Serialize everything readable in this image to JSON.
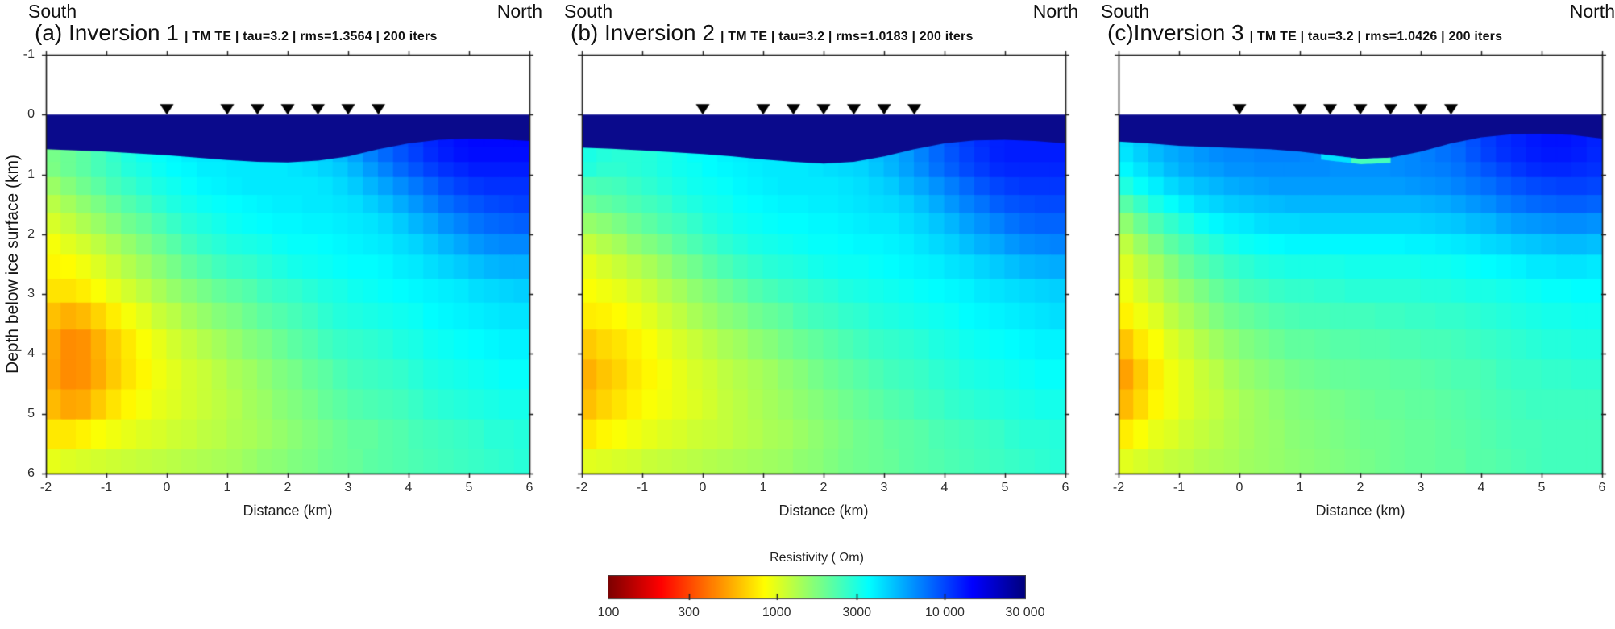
{
  "figure": {
    "background": "#ffffff"
  },
  "chart_data": {
    "type": "heatmap",
    "description": "Three 2-D magnetotelluric resistivity inversion cross-sections (blocky model cells) with an ice layer at top, seven station markers on the surface, and a shared logarithmic jet-reversed colorbar.",
    "x_axis": {
      "label": "Distance (km)",
      "range": [
        -2,
        6
      ],
      "ticks": [
        "-2",
        "-1",
        "0",
        "1",
        "2",
        "3",
        "4",
        "5",
        "6"
      ],
      "tick_values": [
        -2,
        -1,
        0,
        1,
        2,
        3,
        4,
        5,
        6
      ]
    },
    "y_axis": {
      "label": "Depth below ice surface (km)",
      "range": [
        -1,
        6
      ],
      "ticks": [
        "-1",
        "0",
        "1",
        "2",
        "3",
        "4",
        "5",
        "6"
      ],
      "tick_values": [
        -1,
        0,
        1,
        2,
        3,
        4,
        5,
        6
      ]
    },
    "stations_x_km": [
      0,
      1,
      1.5,
      2,
      2.5,
      3,
      3.5
    ],
    "ice_color": "#0a0a8c",
    "frame_color": "#1a1a1a",
    "colorbar": {
      "title": "Resistivity ( Ωm)",
      "scale": "log",
      "range": [
        100,
        30000
      ],
      "tick_values": [
        100,
        300,
        1000,
        3000,
        10000,
        30000
      ],
      "tick_labels": [
        "100",
        "300",
        "1000",
        "3000",
        "10 000",
        "30 000"
      ],
      "colormap": "jet-reversed"
    },
    "grid_x_km": [
      -2,
      -1.5,
      -1,
      -0.5,
      0,
      0.5,
      1,
      1.5,
      2,
      2.5,
      3,
      3.5,
      4,
      4.5,
      5,
      5.5,
      6
    ],
    "grid_z_km": [
      0.6,
      0.9,
      1.2,
      1.6,
      2.0,
      2.5,
      3.0,
      3.6,
      4.2,
      4.9,
      5.5,
      5.85
    ],
    "panels": [
      {
        "id": "a",
        "south": "South",
        "north": "North",
        "title_main": "(a) Inversion 1",
        "title_info": "| TM TE | tau=3.2 | rms=1.3564 | 200 iters",
        "rms": 1.3564,
        "tau": 3.2,
        "modes": "TM TE",
        "iterations": 200,
        "ice_bottom_km": [
          0.58,
          0.6,
          0.62,
          0.65,
          0.68,
          0.72,
          0.76,
          0.79,
          0.8,
          0.77,
          0.7,
          0.58,
          0.48,
          0.42,
          0.4,
          0.41,
          0.44
        ],
        "basal_streak": null,
        "log10_resistivity": [
          [
            3.25,
            3.3,
            3.4,
            3.5,
            3.55,
            3.6,
            3.6,
            3.6,
            3.6,
            3.65,
            3.75,
            3.9,
            4.0,
            4.1,
            4.15,
            4.15,
            4.15
          ],
          [
            3.25,
            3.3,
            3.4,
            3.48,
            3.54,
            3.58,
            3.6,
            3.6,
            3.6,
            3.63,
            3.7,
            3.83,
            3.95,
            4.05,
            4.1,
            4.1,
            4.1
          ],
          [
            3.15,
            3.25,
            3.35,
            3.44,
            3.5,
            3.55,
            3.58,
            3.6,
            3.6,
            3.6,
            3.65,
            3.75,
            3.85,
            3.95,
            4.03,
            4.05,
            4.05
          ],
          [
            3.05,
            3.15,
            3.25,
            3.35,
            3.44,
            3.5,
            3.54,
            3.56,
            3.58,
            3.6,
            3.6,
            3.65,
            3.75,
            3.85,
            3.93,
            3.98,
            4.0
          ],
          [
            2.95,
            3.05,
            3.15,
            3.25,
            3.35,
            3.44,
            3.5,
            3.52,
            3.55,
            3.56,
            3.58,
            3.6,
            3.66,
            3.74,
            3.83,
            3.88,
            3.9
          ],
          [
            2.9,
            2.95,
            3.05,
            3.15,
            3.25,
            3.35,
            3.41,
            3.45,
            3.5,
            3.52,
            3.55,
            3.56,
            3.6,
            3.64,
            3.7,
            3.74,
            3.75
          ],
          [
            2.85,
            2.85,
            2.95,
            3.05,
            3.15,
            3.24,
            3.3,
            3.36,
            3.41,
            3.45,
            3.5,
            3.52,
            3.55,
            3.58,
            3.6,
            3.64,
            3.65
          ],
          [
            2.76,
            2.65,
            2.8,
            2.94,
            3.04,
            3.12,
            3.2,
            3.27,
            3.34,
            3.4,
            3.45,
            3.47,
            3.5,
            3.54,
            3.56,
            3.59,
            3.6
          ],
          [
            2.7,
            2.6,
            2.74,
            2.88,
            2.98,
            3.05,
            3.12,
            3.19,
            3.26,
            3.32,
            3.39,
            3.41,
            3.45,
            3.49,
            3.51,
            3.54,
            3.55
          ],
          [
            2.8,
            2.7,
            2.84,
            2.94,
            3.0,
            3.05,
            3.1,
            3.16,
            3.22,
            3.28,
            3.34,
            3.36,
            3.4,
            3.44,
            3.46,
            3.49,
            3.5
          ],
          [
            2.9,
            2.94,
            2.99,
            3.02,
            3.05,
            3.08,
            3.11,
            3.15,
            3.19,
            3.24,
            3.29,
            3.31,
            3.35,
            3.38,
            3.41,
            3.44,
            3.45
          ],
          [
            3.0,
            3.03,
            3.06,
            3.08,
            3.1,
            3.13,
            3.15,
            3.19,
            3.23,
            3.27,
            3.3,
            3.33,
            3.35,
            3.38,
            3.4,
            3.43,
            3.45
          ]
        ]
      },
      {
        "id": "b",
        "south": "South",
        "north": "North",
        "title_main": "(b) Inversion 2",
        "title_info": "| TM TE | tau=3.2 | rms=1.0183 | 200 iters",
        "rms": 1.0183,
        "tau": 3.2,
        "modes": "TM TE",
        "iterations": 200,
        "ice_bottom_km": [
          0.55,
          0.57,
          0.6,
          0.63,
          0.66,
          0.7,
          0.75,
          0.79,
          0.82,
          0.79,
          0.7,
          0.58,
          0.48,
          0.43,
          0.42,
          0.44,
          0.48
        ],
        "basal_streak": null,
        "log10_resistivity": [
          [
            3.5,
            3.45,
            3.45,
            3.5,
            3.55,
            3.58,
            3.6,
            3.6,
            3.62,
            3.65,
            3.72,
            3.82,
            3.95,
            4.05,
            4.1,
            4.1,
            4.1
          ],
          [
            3.48,
            3.44,
            3.45,
            3.5,
            3.54,
            3.57,
            3.6,
            3.6,
            3.62,
            3.64,
            3.7,
            3.8,
            3.92,
            4.02,
            4.08,
            4.08,
            4.08
          ],
          [
            3.35,
            3.38,
            3.42,
            3.47,
            3.52,
            3.55,
            3.58,
            3.6,
            3.6,
            3.62,
            3.66,
            3.74,
            3.84,
            3.94,
            4.02,
            4.04,
            4.04
          ],
          [
            3.25,
            3.3,
            3.36,
            3.42,
            3.48,
            3.52,
            3.55,
            3.57,
            3.58,
            3.6,
            3.62,
            3.66,
            3.75,
            3.85,
            3.93,
            3.97,
            3.98
          ],
          [
            3.1,
            3.18,
            3.26,
            3.34,
            3.42,
            3.48,
            3.52,
            3.54,
            3.55,
            3.57,
            3.58,
            3.61,
            3.67,
            3.75,
            3.83,
            3.88,
            3.9
          ],
          [
            2.98,
            3.05,
            3.13,
            3.22,
            3.31,
            3.39,
            3.45,
            3.48,
            3.51,
            3.53,
            3.55,
            3.57,
            3.6,
            3.65,
            3.7,
            3.74,
            3.76
          ],
          [
            2.92,
            2.96,
            3.03,
            3.12,
            3.21,
            3.29,
            3.35,
            3.4,
            3.44,
            3.47,
            3.5,
            3.52,
            3.55,
            3.58,
            3.61,
            3.64,
            3.66
          ],
          [
            2.85,
            2.88,
            2.95,
            3.04,
            3.12,
            3.19,
            3.25,
            3.31,
            3.37,
            3.41,
            3.45,
            3.47,
            3.5,
            3.54,
            3.56,
            3.59,
            3.6
          ],
          [
            2.7,
            2.8,
            2.88,
            2.96,
            3.04,
            3.1,
            3.16,
            3.22,
            3.28,
            3.33,
            3.39,
            3.41,
            3.45,
            3.49,
            3.51,
            3.54,
            3.55
          ],
          [
            2.75,
            2.85,
            2.92,
            2.98,
            3.03,
            3.08,
            3.13,
            3.18,
            3.24,
            3.29,
            3.34,
            3.37,
            3.41,
            3.44,
            3.47,
            3.49,
            3.5
          ],
          [
            2.9,
            2.95,
            3.0,
            3.03,
            3.06,
            3.09,
            3.12,
            3.16,
            3.2,
            3.25,
            3.29,
            3.32,
            3.35,
            3.38,
            3.41,
            3.44,
            3.45
          ],
          [
            3.0,
            3.03,
            3.06,
            3.09,
            3.11,
            3.13,
            3.16,
            3.19,
            3.23,
            3.27,
            3.3,
            3.33,
            3.36,
            3.38,
            3.41,
            3.43,
            3.45
          ]
        ]
      },
      {
        "id": "c",
        "south": "South",
        "north": "North",
        "title_main": "(c)Inversion 3",
        "title_info": "| TM TE | tau=3.2 | rms=1.0426 | 200 iters",
        "rms": 1.0426,
        "tau": 3.2,
        "modes": "TM TE",
        "iterations": 200,
        "ice_bottom_km": [
          0.45,
          0.48,
          0.52,
          0.54,
          0.56,
          0.58,
          0.62,
          0.68,
          0.74,
          0.72,
          0.62,
          0.48,
          0.38,
          0.33,
          0.32,
          0.34,
          0.4
        ],
        "basal_streak": [
          {
            "x_from": 1.35,
            "x_to": 1.85,
            "thickness_km": 0.09,
            "log10_resistivity": 3.62
          },
          {
            "x_from": 1.85,
            "x_to": 2.5,
            "thickness_km": 0.09,
            "log10_resistivity": 3.38
          }
        ],
        "log10_resistivity": [
          [
            3.6,
            3.7,
            3.78,
            3.82,
            3.85,
            3.85,
            3.85,
            3.82,
            3.8,
            3.82,
            3.85,
            3.9,
            4.0,
            4.08,
            4.12,
            4.12,
            4.08
          ],
          [
            3.55,
            3.65,
            3.74,
            3.79,
            3.82,
            3.83,
            3.83,
            3.82,
            3.81,
            3.82,
            3.84,
            3.88,
            3.95,
            4.03,
            4.08,
            4.08,
            4.04
          ],
          [
            3.45,
            3.57,
            3.66,
            3.72,
            3.76,
            3.78,
            3.79,
            3.79,
            3.79,
            3.79,
            3.8,
            3.83,
            3.89,
            3.95,
            4.0,
            4.02,
            4.0
          ],
          [
            3.25,
            3.42,
            3.53,
            3.61,
            3.66,
            3.69,
            3.7,
            3.7,
            3.7,
            3.7,
            3.71,
            3.74,
            3.79,
            3.85,
            3.9,
            3.91,
            3.9
          ],
          [
            3.08,
            3.27,
            3.4,
            3.49,
            3.55,
            3.58,
            3.6,
            3.6,
            3.6,
            3.6,
            3.61,
            3.63,
            3.66,
            3.71,
            3.75,
            3.76,
            3.75
          ],
          [
            2.98,
            3.13,
            3.27,
            3.37,
            3.44,
            3.48,
            3.5,
            3.5,
            3.5,
            3.5,
            3.51,
            3.53,
            3.55,
            3.58,
            3.61,
            3.62,
            3.61
          ],
          [
            2.93,
            3.04,
            3.17,
            3.27,
            3.35,
            3.39,
            3.42,
            3.43,
            3.44,
            3.44,
            3.45,
            3.46,
            3.48,
            3.5,
            3.52,
            3.54,
            3.54
          ],
          [
            2.85,
            2.95,
            3.08,
            3.18,
            3.26,
            3.31,
            3.34,
            3.35,
            3.36,
            3.38,
            3.39,
            3.4,
            3.43,
            3.45,
            3.48,
            3.49,
            3.49
          ],
          [
            2.62,
            2.85,
            2.99,
            3.09,
            3.18,
            3.24,
            3.28,
            3.3,
            3.31,
            3.33,
            3.34,
            3.36,
            3.38,
            3.41,
            3.43,
            3.44,
            3.44
          ],
          [
            2.72,
            2.89,
            2.99,
            3.06,
            3.13,
            3.19,
            3.23,
            3.26,
            3.28,
            3.3,
            3.31,
            3.33,
            3.35,
            3.38,
            3.4,
            3.4,
            3.4
          ],
          [
            2.9,
            2.99,
            3.05,
            3.1,
            3.14,
            3.18,
            3.21,
            3.24,
            3.26,
            3.28,
            3.3,
            3.31,
            3.34,
            3.36,
            3.38,
            3.39,
            3.39
          ],
          [
            3.0,
            3.05,
            3.09,
            3.12,
            3.15,
            3.18,
            3.21,
            3.23,
            3.26,
            3.28,
            3.3,
            3.31,
            3.34,
            3.35,
            3.38,
            3.39,
            3.39
          ]
        ]
      }
    ]
  }
}
